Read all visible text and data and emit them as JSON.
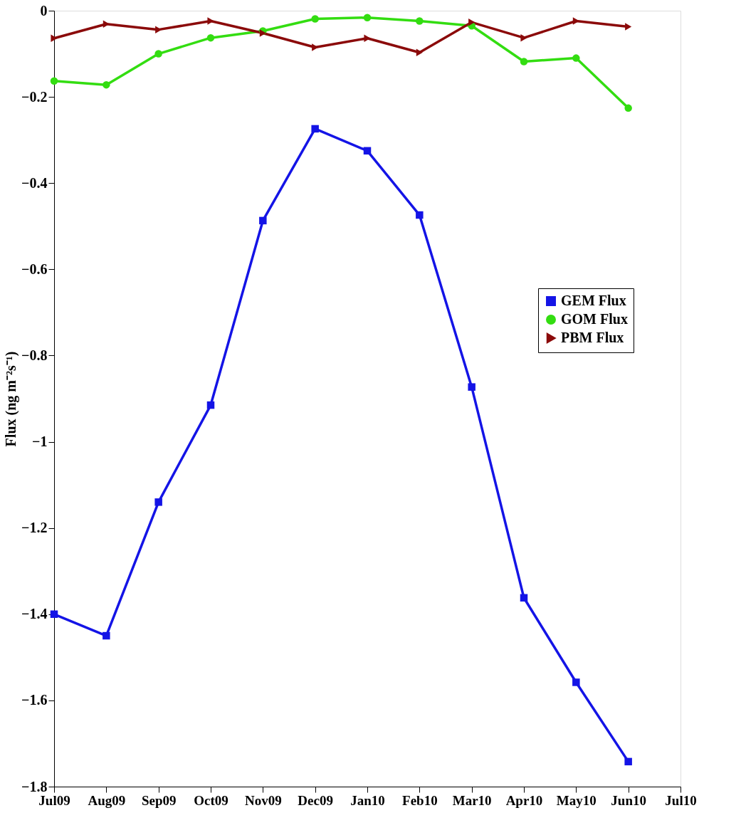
{
  "chart_data": {
    "type": "line",
    "ylabel": "Flux (ng m⁻²s⁻¹)",
    "categories": [
      "Jul09",
      "Aug09",
      "Sep09",
      "Oct09",
      "Nov09",
      "Dec09",
      "Jan10",
      "Feb10",
      "Mar10",
      "Apr10",
      "May10",
      "Jun10",
      "Jul10"
    ],
    "series": [
      {
        "name": "GEM Flux",
        "color": "#1414e6",
        "marker": "square",
        "values": [
          -1.4,
          -1.45,
          -1.14,
          -0.915,
          -0.487,
          -0.274,
          -0.325,
          -0.474,
          -0.873,
          -1.362,
          -1.558,
          -1.742,
          null
        ]
      },
      {
        "name": "GOM Flux",
        "color": "#33dd11",
        "marker": "circle",
        "values": [
          -0.163,
          -0.172,
          -0.1,
          -0.063,
          -0.047,
          -0.019,
          -0.016,
          -0.024,
          -0.035,
          -0.118,
          -0.11,
          -0.226,
          null
        ]
      },
      {
        "name": "PBM Flux",
        "color": "#8b0a0a",
        "marker": "triangle",
        "values": [
          -0.064,
          -0.031,
          -0.044,
          -0.024,
          -0.052,
          -0.085,
          -0.064,
          -0.097,
          -0.027,
          -0.063,
          -0.024,
          -0.037,
          null
        ]
      }
    ],
    "ylim": [
      -1.8,
      0
    ],
    "yticks": [
      -1.8,
      -1.6,
      -1.4,
      -1.2,
      -1,
      -0.8,
      -0.6,
      -0.4,
      -0.2,
      0
    ],
    "grid": false,
    "legend": "right",
    "line_style": "solid"
  }
}
